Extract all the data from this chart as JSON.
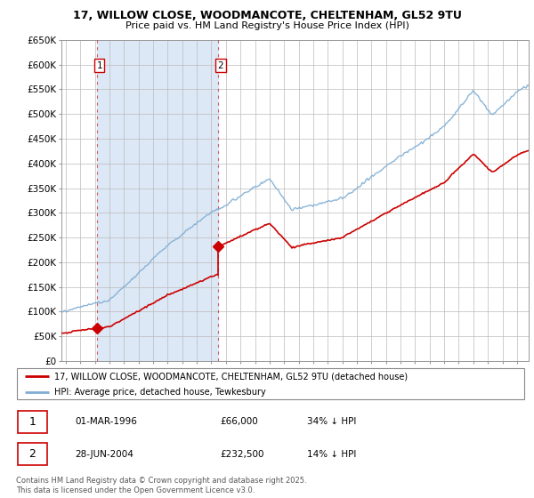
{
  "title_line1": "17, WILLOW CLOSE, WOODMANCOTE, CHELTENHAM, GL52 9TU",
  "title_line2": "Price paid vs. HM Land Registry's House Price Index (HPI)",
  "ylim": [
    0,
    650000
  ],
  "yticks": [
    0,
    50000,
    100000,
    150000,
    200000,
    250000,
    300000,
    350000,
    400000,
    450000,
    500000,
    550000,
    600000,
    650000
  ],
  "ytick_labels": [
    "£0",
    "£50K",
    "£100K",
    "£150K",
    "£200K",
    "£250K",
    "£300K",
    "£350K",
    "£400K",
    "£450K",
    "£500K",
    "£550K",
    "£600K",
    "£650K"
  ],
  "hpi_color": "#7eadd4",
  "price_color": "#cc0000",
  "shade_color": "#dce8f5",
  "t1_year": 1996.17,
  "t1_price": 66000,
  "t1_date": "01-MAR-1996",
  "t1_note": "34% ↓ HPI",
  "t1_price_str": "£66,000",
  "t2_year": 2004.49,
  "t2_price": 232500,
  "t2_date": "28-JUN-2004",
  "t2_note": "14% ↓ HPI",
  "t2_price_str": "£232,500",
  "legend_line1": "17, WILLOW CLOSE, WOODMANCOTE, CHELTENHAM, GL52 9TU (detached house)",
  "legend_line2": "HPI: Average price, detached house, Tewkesbury",
  "footer": "Contains HM Land Registry data © Crown copyright and database right 2025.\nThis data is licensed under the Open Government Licence v3.0.",
  "xlim_left": 1993.7,
  "xlim_right": 2025.8,
  "start_year": 1994,
  "end_year": 2025
}
